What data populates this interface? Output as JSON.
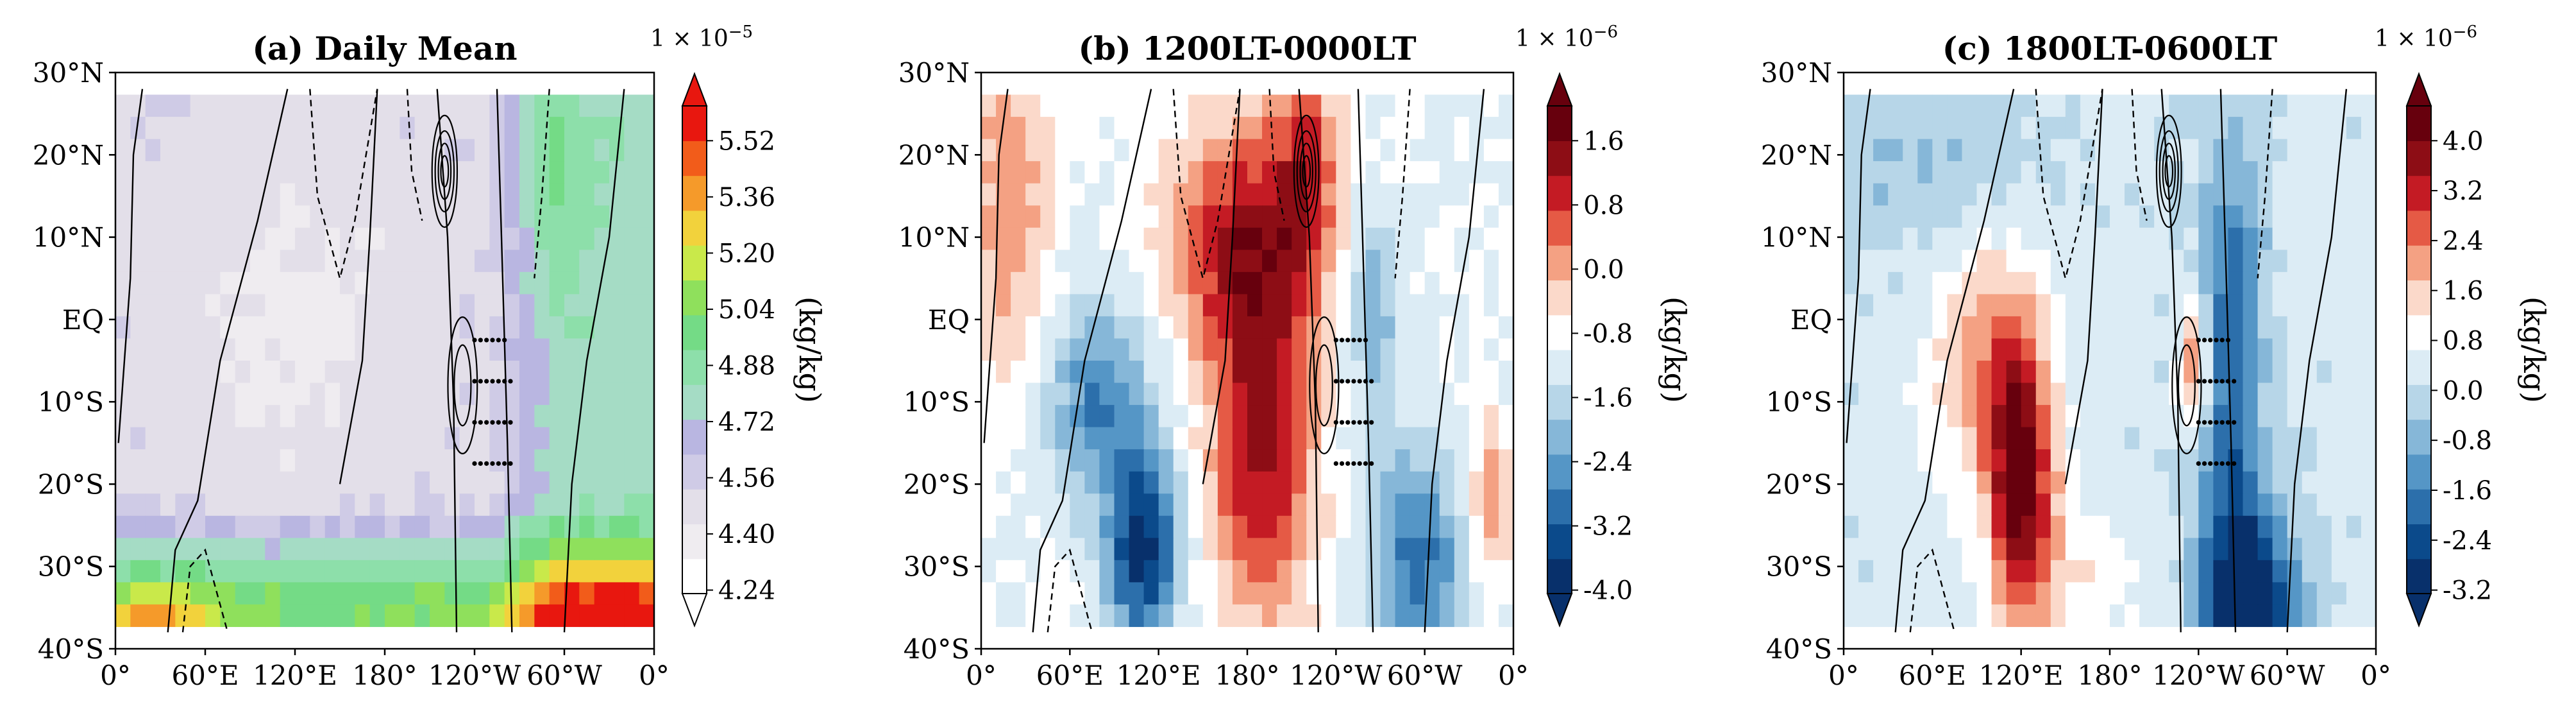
{
  "figure": {
    "panels": [
      {
        "id": "a",
        "title": "(a) Daily Mean",
        "scale_label": "1 × 10",
        "scale_exp": "−5",
        "cbar_label": "(kg/kg)",
        "palette": [
          "#ffffff",
          "#efecf0",
          "#e3dfe9",
          "#cfcbe6",
          "#b9b6e1",
          "#a5dcc5",
          "#8ddfaa",
          "#74db86",
          "#8fe05c",
          "#c9e94a",
          "#f2d23c",
          "#f59a2a",
          "#f25c1a",
          "#e8170f"
        ],
        "cbar_ticks": [
          "5.52",
          "5.36",
          "5.20",
          "5.04",
          "4.88",
          "4.72",
          "4.56",
          "4.40",
          "4.24"
        ]
      },
      {
        "id": "b",
        "title": "(b) 1200LT-0000LT",
        "scale_label": "1 × 10",
        "scale_exp": "−6",
        "cbar_label": "(kg/kg)",
        "palette": [
          "#08306b",
          "#0b4a8b",
          "#2c6fab",
          "#5596c6",
          "#86b7d8",
          "#b7d6e8",
          "#dcecf5",
          "#ffffff",
          "#fbd9ca",
          "#f4a183",
          "#e55a45",
          "#c41b24",
          "#8d0d15",
          "#67000d"
        ],
        "cbar_ticks": [
          "1.6",
          "0.8",
          "0.0",
          "-0.8",
          "-1.6",
          "-2.4",
          "-3.2",
          "-4.0"
        ]
      },
      {
        "id": "c",
        "title": "(c) 1800LT-0600LT",
        "scale_label": "1 × 10",
        "scale_exp": "−6",
        "cbar_label": "(kg/kg)",
        "palette": [
          "#08306b",
          "#0b4a8b",
          "#2c6fab",
          "#5596c6",
          "#86b7d8",
          "#b7d6e8",
          "#dcecf5",
          "#ffffff",
          "#fbd9ca",
          "#f4a183",
          "#e55a45",
          "#c41b24",
          "#8d0d15",
          "#67000d"
        ],
        "cbar_ticks": [
          "4.0",
          "3.2",
          "2.4",
          "1.6",
          "0.8",
          "0.0",
          "-0.8",
          "-1.6",
          "-2.4",
          "-3.2"
        ]
      }
    ]
  },
  "chart_data": [
    {
      "type": "heatmap",
      "title": "(a) Daily Mean",
      "colorbar_label": "(kg/kg)",
      "colorbar_multiplier": "1 × 10^-5",
      "x_ticks": [
        "0°",
        "60°E",
        "120°E",
        "180°",
        "120°W",
        "60°W",
        "0°"
      ],
      "y_ticks": [
        "30°N",
        "20°N",
        "10°N",
        "EQ",
        "10°S",
        "20°S",
        "30°S",
        "40°S"
      ],
      "xlim": [
        0,
        360
      ],
      "ylim": [
        -40,
        30
      ],
      "colorbar_levels": [
        4.24,
        4.4,
        4.56,
        4.72,
        4.88,
        5.04,
        5.2,
        5.36,
        5.52
      ],
      "colorbar_extend": "both",
      "contours": "black solid and dashed lines",
      "stippling": "dots over 120°W, 5°S–20°S"
    },
    {
      "type": "heatmap",
      "title": "(b) 1200LT-0000LT",
      "colorbar_label": "(kg/kg)",
      "colorbar_multiplier": "1 × 10^-6",
      "x_ticks": [
        "0°",
        "60°E",
        "120°E",
        "180°",
        "120°W",
        "60°W",
        "0°"
      ],
      "y_ticks": [
        "30°N",
        "20°N",
        "10°N",
        "EQ",
        "10°S",
        "20°S",
        "30°S",
        "40°S"
      ],
      "xlim": [
        0,
        360
      ],
      "ylim": [
        -40,
        30
      ],
      "colorbar_levels": [
        -4.0,
        -3.2,
        -2.4,
        -1.6,
        -0.8,
        0.0,
        0.8,
        1.6
      ],
      "colorbar_extend": "both",
      "contours": "black solid and dashed lines",
      "stippling": "dots over 120°W, 5°S–20°S"
    },
    {
      "type": "heatmap",
      "title": "(c) 1800LT-0600LT",
      "colorbar_label": "(kg/kg)",
      "colorbar_multiplier": "1 × 10^-6",
      "x_ticks": [
        "0°",
        "60°E",
        "120°E",
        "180°",
        "120°W",
        "60°W",
        "0°"
      ],
      "y_ticks": [
        "30°N",
        "20°N",
        "10°N",
        "EQ",
        "10°S",
        "20°S",
        "30°S",
        "40°S"
      ],
      "xlim": [
        0,
        360
      ],
      "ylim": [
        -40,
        30
      ],
      "colorbar_levels": [
        -3.2,
        -2.4,
        -1.6,
        -0.8,
        0.0,
        0.8,
        1.6,
        2.4,
        3.2,
        4.0
      ],
      "colorbar_extend": "both",
      "contours": "black solid and dashed lines",
      "stippling": "dots over 120°W, 5°S–20°S"
    }
  ]
}
